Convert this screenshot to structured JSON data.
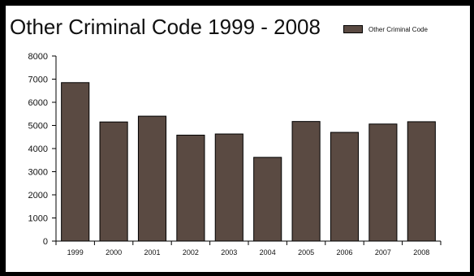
{
  "chart_data": {
    "type": "bar",
    "title": "Other Criminal Code 1999 - 2008",
    "xlabel": "",
    "ylabel": "",
    "categories": [
      "1999",
      "2000",
      "2001",
      "2002",
      "2003",
      "2004",
      "2005",
      "2006",
      "2007",
      "2008"
    ],
    "series": [
      {
        "name": "Other Criminal Code",
        "values": [
          6850,
          5150,
          5400,
          4580,
          4630,
          3620,
          5170,
          4700,
          5060,
          5160
        ],
        "color": "#5a4a42"
      }
    ],
    "ylim": [
      0,
      8000
    ],
    "yticks": [
      "0",
      "1000",
      "2000",
      "3000",
      "4000",
      "5000",
      "6000",
      "7000",
      "8000"
    ],
    "grid": false,
    "legend_position": "top-right"
  }
}
